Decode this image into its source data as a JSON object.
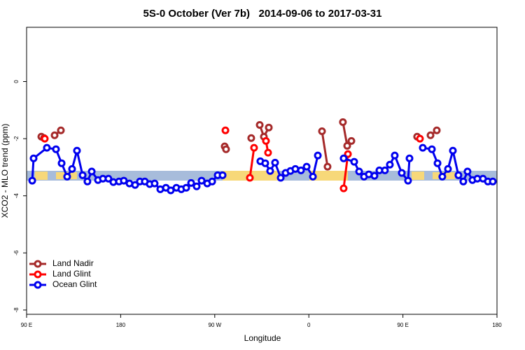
{
  "chart_data": {
    "type": "line",
    "title": "5S-0 October (Ver 7b)   2014-09-06 to 2017-03-31",
    "x_label": "Longitude",
    "y_label": "XCO2 - MLO trend (ppm)",
    "xlim": [
      90,
      540
    ],
    "ylim": [
      -8.15,
      1.9
    ],
    "xticks": [
      {
        "value": 90,
        "label": "90 E"
      },
      180,
      {
        "value": 270,
        "label": "90 W"
      },
      {
        "value": 360,
        "label": "0"
      },
      {
        "value": 450,
        "label": "90 E"
      },
      {
        "value": 540,
        "label": "180"
      }
    ],
    "yticks": [
      0,
      -2,
      -4,
      -6,
      -8
    ],
    "legend_position": "bottomleft",
    "series": [
      {
        "name": "Land Nadir",
        "color": "#a52a2a",
        "x": [
          104.1,
          106.7,
          null,
          116.8,
          122.8,
          null,
          279.5,
          280.8,
          null,
          304.9,
          null,
          313.0,
          317.0,
          321.7,
          null,
          372.6,
          377.9,
          null,
          392.6,
          396.7,
          400.7,
          null,
          463.6,
          null,
          476.4,
          482.4
        ],
        "values": [
          -1.93,
          -1.98,
          null,
          -1.88,
          -1.71,
          null,
          -2.27,
          -2.37,
          null,
          -1.98,
          null,
          -1.52,
          -1.93,
          -1.61,
          null,
          -1.74,
          -2.98,
          null,
          -1.42,
          -2.25,
          -2.08,
          null,
          -1.93,
          null,
          -1.88,
          -1.71
        ]
      },
      {
        "name": "Land Glint",
        "color": "#ff0000",
        "x": [
          107.4,
          null,
          280.2,
          null,
          303.6,
          307.6,
          null,
          319.0,
          321.0,
          null,
          393.3,
          397.4,
          null,
          466.3
        ],
        "values": [
          -2.0,
          null,
          -1.71,
          null,
          -3.37,
          -2.32,
          null,
          -2.08,
          -2.49,
          null,
          -3.74,
          -2.54,
          null,
          -2.0
        ]
      },
      {
        "name": "Ocean Glint",
        "color": "#0000ee",
        "x": [
          95.4,
          96.7,
          109.4,
          118.1,
          123.5,
          128.8,
          133.5,
          138.2,
          143.6,
          148.2,
          152.3,
          158.3,
          163.0,
          168.3,
          173.0,
          178.4,
          183.0,
          188.4,
          193.8,
          198.4,
          203.1,
          207.8,
          212.5,
          217.9,
          223.3,
          227.9,
          233.3,
          238.0,
          242.7,
          247.4,
          252.7,
          257.4,
          262.8,
          267.5,
          272.8,
          277.5,
          null,
          313.6,
          318.3,
          323.0,
          327.7,
          333.1,
          337.8,
          342.4,
          347.1,
          352.5,
          357.9,
          363.9,
          368.6,
          null,
          393.3,
          403.4,
          408.1,
          412.8,
          417.4,
          422.8,
          427.5,
          432.8,
          437.5,
          442.2,
          448.9,
          454.9,
          456.3,
          null,
          469.0,
          477.7,
          483.1,
          487.7,
          493.1,
          497.8,
          503.1,
          507.8,
          511.8,
          516.5,
          521.2,
          526.6,
          531.3,
          536.0
        ],
        "values": [
          -3.47,
          -2.69,
          -2.32,
          -2.37,
          -2.86,
          -3.33,
          -3.06,
          -2.42,
          -3.28,
          -3.5,
          -3.15,
          -3.45,
          -3.4,
          -3.4,
          -3.52,
          -3.5,
          -3.47,
          -3.57,
          -3.62,
          -3.5,
          -3.5,
          -3.59,
          -3.57,
          -3.77,
          -3.72,
          -3.81,
          -3.72,
          -3.77,
          -3.72,
          -3.55,
          -3.67,
          -3.47,
          -3.57,
          -3.5,
          -3.28,
          -3.28,
          null,
          -2.79,
          -2.86,
          -3.13,
          -2.84,
          -3.37,
          -3.2,
          -3.13,
          -3.06,
          -3.11,
          -2.98,
          -3.33,
          -2.59,
          null,
          -2.69,
          -2.81,
          -3.15,
          -3.33,
          -3.25,
          -3.3,
          -3.11,
          -3.11,
          -2.91,
          -2.59,
          -3.2,
          -3.47,
          -2.69,
          null,
          -2.32,
          -2.37,
          -2.86,
          -3.33,
          -3.06,
          -2.42,
          -3.28,
          -3.5,
          -3.15,
          -3.45,
          -3.4,
          -3.4,
          -3.5,
          -3.5
        ]
      }
    ]
  }
}
